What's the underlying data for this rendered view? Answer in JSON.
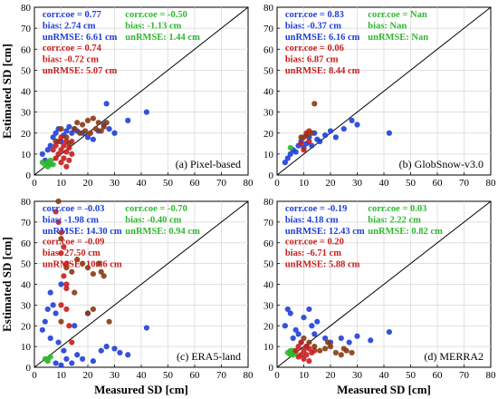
{
  "figure": {
    "series_colors": {
      "blue": "#1f3fd6",
      "green": "#2eb82e",
      "red": "#c81e1e",
      "dark": "#8a3a12"
    }
  },
  "chart_data": [
    {
      "type": "scatter",
      "xlabel": "",
      "ylabel": "Estimated SD [cm]",
      "xlim": [
        0,
        80
      ],
      "ylim": [
        0,
        80
      ],
      "xticks": [
        "0",
        "10",
        "20",
        "30",
        "40",
        "50",
        "60",
        "70",
        "80"
      ],
      "yticks": [
        "0",
        "10",
        "20",
        "30",
        "40",
        "50",
        "60",
        "70",
        "80"
      ],
      "grid": true,
      "one_to_one_line": true,
      "panel_label": "(a) Pixel-based",
      "stats": [
        {
          "color": "blue",
          "lines": [
            "corr.coe = 0.77",
            "bias: 2.74 cm",
            "unRMSE: 6.61 cm"
          ]
        },
        {
          "color": "green",
          "lines": [
            "corr.coe = -0.50",
            "bias: -1.13 cm",
            "unRMSE: 1.44 cm"
          ]
        },
        {
          "color": "red",
          "lines": [
            "corr.coe = 0.74",
            "bias: -0.72 cm",
            "unRMSE: 5.07 cm"
          ]
        }
      ],
      "series": [
        {
          "color": "blue",
          "points": [
            [
              3,
              10
            ],
            [
              4,
              7
            ],
            [
              5,
              12
            ],
            [
              6,
              14
            ],
            [
              7,
              18
            ],
            [
              8,
              20
            ],
            [
              9,
              22
            ],
            [
              10,
              16
            ],
            [
              11,
              19
            ],
            [
              12,
              21
            ],
            [
              13,
              23
            ],
            [
              14,
              20
            ],
            [
              15,
              22
            ],
            [
              16,
              21
            ],
            [
              18,
              20
            ],
            [
              20,
              18
            ],
            [
              22,
              17
            ],
            [
              24,
              21
            ],
            [
              26,
              24
            ],
            [
              27,
              34
            ],
            [
              28,
              22
            ],
            [
              30,
              20
            ],
            [
              35,
              26
            ],
            [
              42,
              30
            ]
          ]
        },
        {
          "color": "green",
          "points": [
            [
              3,
              6
            ],
            [
              4,
              5
            ],
            [
              5,
              4
            ],
            [
              5,
              6
            ],
            [
              6,
              5
            ],
            [
              6,
              7
            ],
            [
              7,
              5
            ]
          ]
        },
        {
          "color": "red",
          "points": [
            [
              7,
              12
            ],
            [
              8,
              14
            ],
            [
              9,
              10
            ],
            [
              9,
              16
            ],
            [
              10,
              12
            ],
            [
              10,
              18
            ],
            [
              11,
              8
            ],
            [
              11,
              14
            ],
            [
              12,
              11
            ],
            [
              12,
              16
            ],
            [
              13,
              7
            ],
            [
              13,
              13
            ],
            [
              14,
              10
            ],
            [
              8,
              8
            ],
            [
              10,
              6
            ],
            [
              12,
              4
            ],
            [
              14,
              16
            ]
          ]
        },
        {
          "color": "dark",
          "points": [
            [
              8,
              16
            ],
            [
              12,
              18
            ],
            [
              15,
              22
            ],
            [
              16,
              25
            ],
            [
              17,
              20
            ],
            [
              18,
              24
            ],
            [
              19,
              21
            ],
            [
              20,
              26
            ],
            [
              21,
              20
            ],
            [
              22,
              27
            ],
            [
              23,
              22
            ],
            [
              24,
              25
            ],
            [
              25,
              21
            ],
            [
              26,
              23
            ],
            [
              27,
              25
            ],
            [
              10,
              22
            ],
            [
              13,
              15
            ]
          ]
        }
      ]
    },
    {
      "type": "scatter",
      "xlabel": "",
      "ylabel": "",
      "xlim": [
        0,
        80
      ],
      "ylim": [
        0,
        80
      ],
      "xticks": [
        "0",
        "10",
        "20",
        "30",
        "40",
        "50",
        "60",
        "70",
        "80"
      ],
      "yticks": [
        "0",
        "10",
        "20",
        "30",
        "40",
        "50",
        "60",
        "70",
        "80"
      ],
      "grid": true,
      "one_to_one_line": true,
      "panel_label": "(b) GlobSnow-v3.0",
      "stats": [
        {
          "color": "blue",
          "lines": [
            "corr.coe = 0.83",
            "bias: -0.37 cm",
            "unRMSE: 6.16 cm"
          ]
        },
        {
          "color": "green",
          "lines": [
            "corr.coe = Nan",
            "bias: Nan",
            "unRMSE: Nan"
          ]
        },
        {
          "color": "red",
          "lines": [
            "corr.coe = 0.06",
            "bias: 6.87 cm",
            "unRMSE: 8.44 cm"
          ]
        }
      ],
      "series": [
        {
          "color": "blue",
          "points": [
            [
              3,
              6
            ],
            [
              4,
              8
            ],
            [
              5,
              10
            ],
            [
              6,
              12
            ],
            [
              7,
              11
            ],
            [
              8,
              14
            ],
            [
              9,
              16
            ],
            [
              10,
              13
            ],
            [
              11,
              15
            ],
            [
              12,
              18
            ],
            [
              13,
              14
            ],
            [
              14,
              20
            ],
            [
              15,
              17
            ],
            [
              16,
              16
            ],
            [
              18,
              19
            ],
            [
              20,
              21
            ],
            [
              22,
              18
            ],
            [
              25,
              22
            ],
            [
              28,
              26
            ],
            [
              30,
              24
            ],
            [
              42,
              20
            ]
          ]
        },
        {
          "color": "green",
          "points": [
            [
              5,
              13
            ]
          ]
        },
        {
          "color": "red",
          "points": [
            [
              9,
              15
            ],
            [
              10,
              18
            ],
            [
              11,
              20
            ],
            [
              12,
              21
            ],
            [
              10,
              12
            ],
            [
              12,
              16
            ]
          ]
        },
        {
          "color": "dark",
          "points": [
            [
              11,
              19
            ],
            [
              14,
              34
            ],
            [
              13,
              20
            ],
            [
              9,
              18
            ]
          ]
        }
      ]
    },
    {
      "type": "scatter",
      "xlabel": "Measured SD [cm]",
      "ylabel": "Estimated SD [cm]",
      "xlim": [
        0,
        80
      ],
      "ylim": [
        0,
        80
      ],
      "xticks": [
        "0",
        "10",
        "20",
        "30",
        "40",
        "50",
        "60",
        "70",
        "80"
      ],
      "yticks": [
        "0",
        "10",
        "20",
        "30",
        "40",
        "50",
        "60",
        "70",
        "80"
      ],
      "grid": true,
      "one_to_one_line": true,
      "panel_label": "(c) ERA5-land",
      "stats": [
        {
          "color": "blue",
          "lines": [
            "corr.coe = -0.03",
            "bias: -1.98 cm",
            "unRMSE: 14.30 cm"
          ]
        },
        {
          "color": "green",
          "lines": [
            "corr.coe = -0.70",
            "bias: -0.40 cm",
            "unRMSE: 0.94 cm"
          ]
        },
        {
          "color": "red",
          "lines": [
            "corr.coe = -0.09",
            "bias: 27.50 cm",
            "unRMSE: 10.86 cm"
          ]
        }
      ],
      "series": [
        {
          "color": "blue",
          "points": [
            [
              3,
              18
            ],
            [
              4,
              22
            ],
            [
              5,
              28
            ],
            [
              6,
              36
            ],
            [
              7,
              30
            ],
            [
              8,
              26
            ],
            [
              9,
              12
            ],
            [
              10,
              40
            ],
            [
              11,
              8
            ],
            [
              12,
              4
            ],
            [
              14,
              2
            ],
            [
              15,
              20
            ],
            [
              16,
              6
            ],
            [
              18,
              4
            ],
            [
              20,
              26
            ],
            [
              22,
              3
            ],
            [
              25,
              8
            ],
            [
              27,
              10
            ],
            [
              30,
              9
            ],
            [
              32,
              7
            ],
            [
              35,
              6
            ],
            [
              42,
              19
            ],
            [
              8,
              2
            ],
            [
              10,
              1
            ],
            [
              6,
              14
            ]
          ]
        },
        {
          "color": "green",
          "points": [
            [
              4,
              4
            ],
            [
              5,
              3
            ],
            [
              6,
              5
            ],
            [
              5,
              4
            ]
          ]
        },
        {
          "color": "red",
          "points": [
            [
              8,
              75
            ],
            [
              9,
              70
            ],
            [
              10,
              65
            ],
            [
              10,
              55
            ],
            [
              11,
              58
            ],
            [
              12,
              50
            ],
            [
              11,
              44
            ],
            [
              12,
              40
            ],
            [
              10,
              30
            ],
            [
              12,
              28
            ],
            [
              13,
              20
            ],
            [
              14,
              12
            ],
            [
              12,
              38
            ]
          ]
        },
        {
          "color": "dark",
          "points": [
            [
              9,
              80
            ],
            [
              10,
              62
            ],
            [
              12,
              48
            ],
            [
              14,
              46
            ],
            [
              16,
              52
            ],
            [
              18,
              50
            ],
            [
              20,
              48
            ],
            [
              22,
              45
            ],
            [
              24,
              50
            ],
            [
              25,
              46
            ],
            [
              26,
              44
            ],
            [
              20,
              26
            ],
            [
              22,
              28
            ],
            [
              28,
              22
            ],
            [
              15,
              36
            ],
            [
              10,
              22
            ]
          ]
        }
      ]
    },
    {
      "type": "scatter",
      "xlabel": "Measured SD [cm]",
      "ylabel": "",
      "xlim": [
        0,
        80
      ],
      "ylim": [
        0,
        80
      ],
      "xticks": [
        "0",
        "10",
        "20",
        "30",
        "40",
        "50",
        "60",
        "70",
        "80"
      ],
      "yticks": [
        "0",
        "10",
        "20",
        "30",
        "40",
        "50",
        "60",
        "70",
        "80"
      ],
      "grid": true,
      "one_to_one_line": true,
      "panel_label": "(d) MERRA2",
      "stats": [
        {
          "color": "blue",
          "lines": [
            "corr.coe = -0.19",
            "bias: 4.18 cm",
            "unRMSE: 12.43 cm"
          ]
        },
        {
          "color": "green",
          "lines": [
            "corr.coe = 0.03",
            "bias: 2.22 cm",
            "unRMSE: 0.82 cm"
          ]
        },
        {
          "color": "red",
          "lines": [
            "corr.coe = 0.20",
            "bias: -6.71 cm",
            "unRMSE: 5.88 cm"
          ]
        }
      ],
      "series": [
        {
          "color": "blue",
          "points": [
            [
              3,
              20
            ],
            [
              4,
              28
            ],
            [
              5,
              26
            ],
            [
              6,
              14
            ],
            [
              7,
              18
            ],
            [
              8,
              16
            ],
            [
              9,
              12
            ],
            [
              10,
              24
            ],
            [
              11,
              10
            ],
            [
              12,
              28
            ],
            [
              13,
              20
            ],
            [
              15,
              22
            ],
            [
              18,
              14
            ],
            [
              20,
              12
            ],
            [
              24,
              14
            ],
            [
              27,
              12
            ],
            [
              30,
              15
            ],
            [
              35,
              13
            ],
            [
              42,
              17
            ],
            [
              14,
              16
            ]
          ]
        },
        {
          "color": "green",
          "points": [
            [
              4,
              7
            ],
            [
              5,
              6
            ],
            [
              6,
              8
            ],
            [
              7,
              7
            ],
            [
              6,
              6
            ],
            [
              5,
              8
            ]
          ]
        },
        {
          "color": "red",
          "points": [
            [
              7,
              8
            ],
            [
              8,
              10
            ],
            [
              9,
              6
            ],
            [
              9,
              12
            ],
            [
              10,
              8
            ],
            [
              10,
              4
            ],
            [
              11,
              10
            ],
            [
              11,
              6
            ],
            [
              12,
              9
            ],
            [
              12,
              3
            ],
            [
              13,
              7
            ],
            [
              8,
              5
            ],
            [
              14,
              8
            ]
          ]
        },
        {
          "color": "dark",
          "points": [
            [
              10,
              14
            ],
            [
              12,
              12
            ],
            [
              14,
              10
            ],
            [
              16,
              8
            ],
            [
              18,
              9
            ],
            [
              20,
              10
            ],
            [
              22,
              7
            ],
            [
              24,
              6
            ],
            [
              25,
              9
            ],
            [
              26,
              8
            ],
            [
              28,
              7
            ],
            [
              19,
              12
            ]
          ]
        }
      ]
    }
  ]
}
